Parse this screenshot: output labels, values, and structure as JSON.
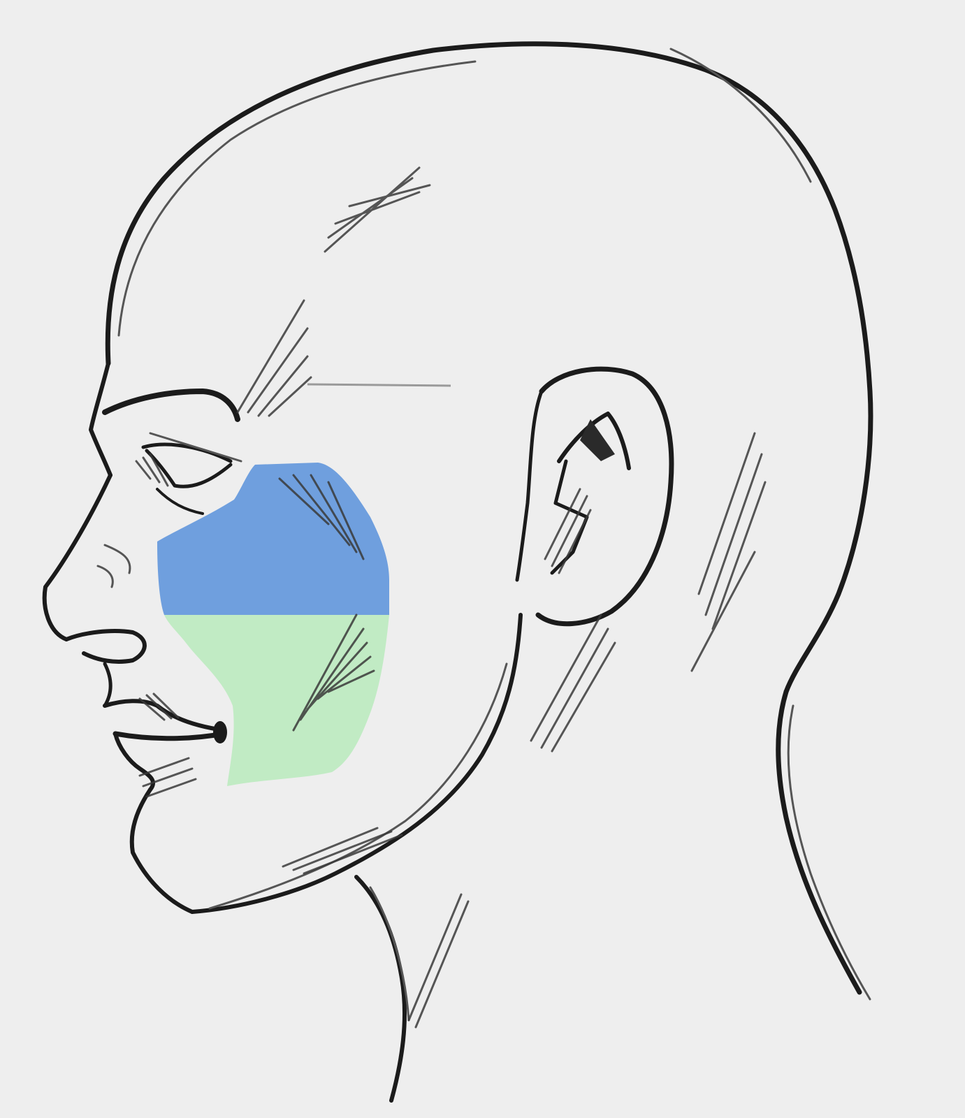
{
  "figure": {
    "subject": "head-profile-sketch",
    "background_color": "#eeeeee",
    "ink_color": "#1b1b1b"
  },
  "regions": [
    {
      "name": "upper-cheek-region",
      "color": "#6f9fde"
    },
    {
      "name": "lower-cheek-region",
      "color": "#c1ebc4"
    }
  ]
}
